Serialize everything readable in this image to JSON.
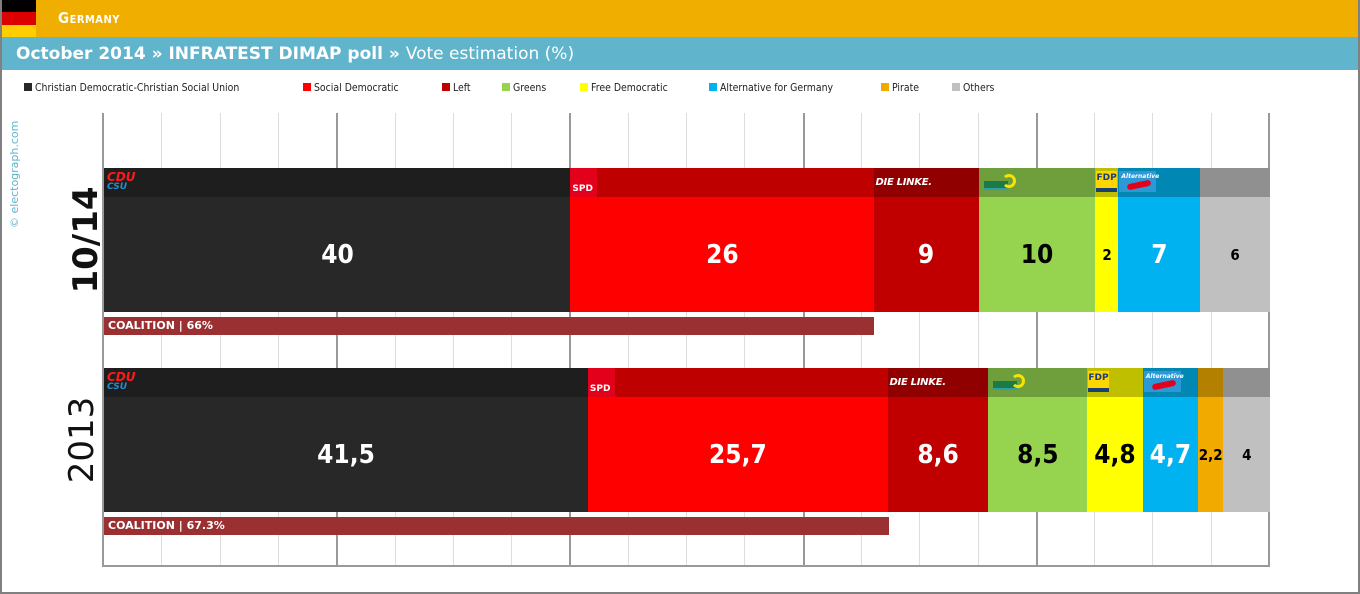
{
  "header": {
    "country": "Germany",
    "flag_colors": [
      "#000000",
      "#dd0000",
      "#ffce00"
    ],
    "background": "#f0ae00"
  },
  "title_bar": {
    "date": "October 2014",
    "sep1": " » ",
    "pollster": "INFRATEST DIMAP poll",
    "sep2": " » ",
    "metric": "Vote estimation (%)",
    "background": "#60b4cc"
  },
  "watermark": "© electograph.com",
  "legend": [
    {
      "label": "Christian Democratic-Christian Social Union",
      "color": "#282828"
    },
    {
      "label": "Social Democratic",
      "color": "#ff0000"
    },
    {
      "label": "Left",
      "color": "#c00000"
    },
    {
      "label": "Greens",
      "color": "#96d450"
    },
    {
      "label": "Free Democratic",
      "color": "#ffff00"
    },
    {
      "label": "Alternative for Germany",
      "color": "#00b3f0"
    },
    {
      "label": "Pirate",
      "color": "#f0aa00"
    },
    {
      "label": "Others",
      "color": "#c0c0c0"
    }
  ],
  "rows": [
    {
      "label": "10/14",
      "coalition": {
        "label": "COALITION",
        "value": "66%",
        "pct": 66
      }
    },
    {
      "label": "2013",
      "coalition": {
        "label": "COALITION",
        "value": "67.3%",
        "pct": 67.3
      }
    }
  ],
  "chart_data": {
    "type": "bar",
    "orientation": "horizontal-stacked",
    "title": "October 2014 » INFRATEST DIMAP poll » Vote estimation (%)",
    "xlabel": "",
    "ylabel": "",
    "xlim": [
      0,
      100
    ],
    "grid": true,
    "grid_minor_step": 5,
    "grid_major_step": 20,
    "legend_position": "top",
    "categories": [
      "10/14",
      "2013"
    ],
    "series": [
      {
        "name": "Christian Democratic-Christian Social Union",
        "short": "CDU/CSU",
        "color": "#282828",
        "header_color": "#1e1e1e",
        "text_color": "#ffffff",
        "values": [
          40,
          41.5
        ],
        "labels": [
          "40",
          "41,5"
        ]
      },
      {
        "name": "Social Democratic",
        "short": "SPD",
        "color": "#ff0000",
        "header_color": "#bf0000",
        "text_color": "#ffffff",
        "values": [
          26,
          25.7
        ],
        "labels": [
          "26",
          "25,7"
        ]
      },
      {
        "name": "Left",
        "short": "DIE LINKE.",
        "color": "#c00000",
        "header_color": "#900000",
        "text_color": "#ffffff",
        "values": [
          9,
          8.6
        ],
        "labels": [
          "9",
          "8,6"
        ]
      },
      {
        "name": "Greens",
        "short": "GRÜNE",
        "color": "#96d450",
        "header_color": "#6e9f3c",
        "text_color": "#000000",
        "values": [
          10,
          8.5
        ],
        "labels": [
          "10",
          "8,5"
        ]
      },
      {
        "name": "Free Democratic",
        "short": "FDP",
        "color": "#ffff00",
        "header_color": "#bfbf00",
        "text_color": "#000000",
        "values": [
          2,
          4.8
        ],
        "labels": [
          "2",
          "4,8"
        ]
      },
      {
        "name": "Alternative for Germany",
        "short": "AfD",
        "color": "#00b3f0",
        "header_color": "#0087b4",
        "text_color": "#ffffff",
        "values": [
          7,
          4.7
        ],
        "labels": [
          "7",
          "4,7"
        ]
      },
      {
        "name": "Pirate",
        "short": "",
        "color": "#f0aa00",
        "header_color": "#b48000",
        "text_color": "#000000",
        "values": [
          0,
          2.2
        ],
        "labels": [
          "",
          "2,2"
        ]
      },
      {
        "name": "Others",
        "short": "",
        "color": "#c0c0c0",
        "header_color": "#909090",
        "text_color": "#000000",
        "values": [
          6,
          4
        ],
        "labels": [
          "6",
          "4"
        ]
      }
    ],
    "annotations": [
      {
        "row": "10/14",
        "text": "COALITION | 66%",
        "value": 66
      },
      {
        "row": "2013",
        "text": "COALITION | 67.3%",
        "value": 67.3
      }
    ]
  }
}
